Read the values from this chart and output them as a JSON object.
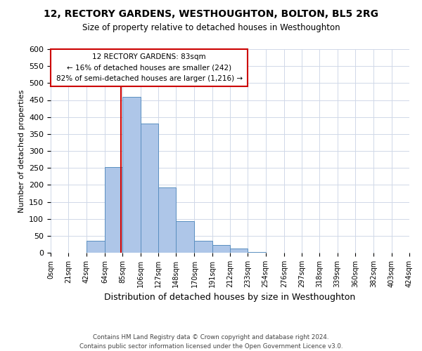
{
  "title": "12, RECTORY GARDENS, WESTHOUGHTON, BOLTON, BL5 2RG",
  "subtitle": "Size of property relative to detached houses in Westhoughton",
  "xlabel": "Distribution of detached houses by size in Westhoughton",
  "ylabel": "Number of detached properties",
  "bin_edges": [
    0,
    21,
    42,
    64,
    85,
    106,
    127,
    148,
    170,
    191,
    212,
    233,
    254,
    276,
    297,
    318,
    339,
    360,
    382,
    403,
    424
  ],
  "bar_heights": [
    0,
    0,
    35,
    252,
    460,
    380,
    192,
    93,
    35,
    22,
    12,
    3,
    1,
    0,
    0,
    0,
    0,
    0,
    0,
    0
  ],
  "bar_color": "#aec6e8",
  "bar_edge_color": "#5a8fc0",
  "property_value": 83,
  "vline_color": "#cc0000",
  "annotation_title": "12 RECTORY GARDENS: 83sqm",
  "annotation_line1": "← 16% of detached houses are smaller (242)",
  "annotation_line2": "82% of semi-detached houses are larger (1,216) →",
  "annotation_box_color": "#cc0000",
  "ylim": [
    0,
    600
  ],
  "yticks": [
    0,
    50,
    100,
    150,
    200,
    250,
    300,
    350,
    400,
    450,
    500,
    550,
    600
  ],
  "tick_labels": [
    "0sqm",
    "21sqm",
    "42sqm",
    "64sqm",
    "85sqm",
    "106sqm",
    "127sqm",
    "148sqm",
    "170sqm",
    "191sqm",
    "212sqm",
    "233sqm",
    "254sqm",
    "276sqm",
    "297sqm",
    "318sqm",
    "339sqm",
    "360sqm",
    "382sqm",
    "403sqm",
    "424sqm"
  ],
  "footnote1": "Contains HM Land Registry data © Crown copyright and database right 2024.",
  "footnote2": "Contains public sector information licensed under the Open Government Licence v3.0.",
  "background_color": "#ffffff",
  "grid_color": "#d0d8e8"
}
